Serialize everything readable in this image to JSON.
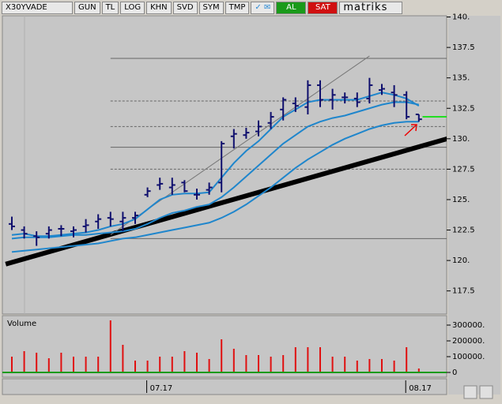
{
  "toolbar": {
    "symbol": "X30YVADE",
    "buttons": [
      "GUN",
      "TL",
      "LOG",
      "KHN",
      "SVD",
      "SYM",
      "TMP"
    ],
    "alarm": "AL",
    "sell": "SAT",
    "brand": "matriks"
  },
  "chart_data": {
    "type": "ohlc",
    "color": "#10106e",
    "categories": [
      null,
      null,
      null,
      null,
      null,
      null,
      null,
      null,
      null,
      null,
      null,
      "07.17",
      null,
      null,
      null,
      null,
      null,
      null,
      null,
      null,
      null,
      null,
      null,
      null,
      null,
      null,
      null,
      null,
      null,
      null,
      null,
      null,
      "08.17",
      null
    ],
    "ohlc": {
      "open": [
        123.0,
        122.5,
        122.0,
        122.2,
        122.6,
        122.4,
        122.8,
        123.2,
        123.5,
        123.2,
        123.5,
        125.4,
        126.2,
        126.0,
        126.4,
        125.4,
        125.8,
        126.4,
        130.2,
        130.3,
        130.6,
        131.3,
        132.4,
        132.9,
        132.6,
        134.4,
        133.2,
        133.4,
        133.3,
        133.3,
        134.0,
        133.8,
        133.6,
        132.0
      ],
      "high": [
        123.6,
        122.8,
        122.4,
        122.8,
        122.9,
        122.8,
        123.4,
        123.8,
        124.0,
        124.0,
        124.0,
        126.0,
        126.8,
        126.8,
        126.6,
        125.9,
        126.4,
        129.8,
        130.8,
        130.9,
        131.5,
        132.2,
        133.4,
        133.4,
        134.8,
        134.8,
        134.1,
        133.8,
        133.8,
        135.0,
        134.5,
        134.4,
        133.9,
        132.0
      ],
      "low": [
        122.5,
        121.8,
        121.2,
        121.8,
        122.0,
        121.9,
        122.3,
        122.6,
        122.8,
        122.4,
        123.0,
        125.2,
        125.8,
        125.4,
        125.6,
        125.0,
        125.4,
        125.6,
        129.2,
        130.0,
        130.2,
        130.8,
        131.5,
        132.2,
        132.0,
        132.6,
        132.4,
        132.9,
        132.6,
        132.9,
        133.6,
        132.6,
        131.6,
        131.4
      ],
      "close": [
        122.8,
        122.2,
        121.9,
        122.5,
        122.6,
        122.5,
        122.9,
        123.4,
        123.4,
        123.5,
        123.7,
        125.7,
        126.3,
        126.2,
        125.7,
        125.4,
        126.0,
        129.6,
        130.4,
        130.5,
        131.0,
        131.8,
        133.2,
        132.7,
        134.4,
        133.2,
        133.6,
        133.4,
        133.0,
        134.4,
        134.1,
        133.6,
        131.8,
        131.6
      ]
    },
    "moving_averages": [
      {
        "color": "#1f86cc",
        "values": [
          122.1,
          122.2,
          122.0,
          122.0,
          122.1,
          122.2,
          122.3,
          122.5,
          122.8,
          123.0,
          123.4,
          124.2,
          125.0,
          125.4,
          125.5,
          125.5,
          125.6,
          126.8,
          128.0,
          129.0,
          129.8,
          130.8,
          131.8,
          132.4,
          133.0,
          133.2,
          133.2,
          133.2,
          133.2,
          133.5,
          133.8,
          133.6,
          133.3,
          132.7
        ]
      },
      {
        "color": "#1f86cc",
        "values": [
          121.8,
          121.9,
          121.9,
          121.9,
          122.0,
          122.1,
          122.1,
          122.2,
          122.3,
          122.4,
          122.6,
          123.0,
          123.5,
          123.9,
          124.1,
          124.4,
          124.6,
          125.2,
          126.0,
          126.9,
          127.8,
          128.7,
          129.6,
          130.3,
          131.0,
          131.4,
          131.7,
          131.9,
          132.2,
          132.5,
          132.8,
          133.0,
          133.0,
          132.8
        ]
      },
      {
        "color": "#1f86cc",
        "values": [
          120.7,
          120.8,
          120.9,
          121.0,
          121.1,
          121.2,
          121.3,
          121.4,
          121.6,
          121.8,
          121.9,
          122.1,
          122.3,
          122.5,
          122.7,
          122.9,
          123.1,
          123.5,
          124.0,
          124.6,
          125.3,
          126.0,
          126.8,
          127.6,
          128.3,
          128.9,
          129.5,
          130.0,
          130.4,
          130.8,
          131.1,
          131.3,
          131.4,
          131.4
        ]
      }
    ],
    "trendlines": [
      {
        "color": "#000000",
        "x": [
          -0.5,
          35.3
        ],
        "y": [
          119.7,
          130.0
        ]
      },
      {
        "color": "#777777",
        "x": [
          8,
          29.0
        ],
        "y": [
          122.1,
          136.8
        ]
      }
    ],
    "levels": [
      {
        "value": 136.6,
        "x": [
          8,
          35.3
        ],
        "dash": false,
        "color": "#666666"
      },
      {
        "value": 133.1,
        "x": [
          8,
          35.3
        ],
        "dash": true,
        "color": "#666666"
      },
      {
        "value": 131.0,
        "x": [
          8,
          35.3
        ],
        "dash": true,
        "color": "#666666"
      },
      {
        "value": 129.3,
        "x": [
          8,
          35.3
        ],
        "dash": false,
        "color": "#666666"
      },
      {
        "value": 127.5,
        "x": [
          8,
          35.3
        ],
        "dash": true,
        "color": "#666666"
      },
      {
        "value": 121.8,
        "x": [
          8,
          35.3
        ],
        "dash": false,
        "color": "#666666"
      },
      {
        "value": 131.8,
        "x": [
          33.3,
          35.3
        ],
        "dash": false,
        "color": "#22dd22"
      }
    ],
    "ylim": [
      115.6,
      140.1
    ],
    "yticks": [
      {
        "value": 117.5,
        "label": "117.5"
      },
      {
        "value": 120,
        "label": "120."
      },
      {
        "value": 122.5,
        "label": "122.5"
      },
      {
        "value": 125,
        "label": "125."
      },
      {
        "value": 127.5,
        "label": "127.5"
      },
      {
        "value": 130,
        "label": "130."
      },
      {
        "value": 132.5,
        "label": "132.5"
      },
      {
        "value": 135,
        "label": "135."
      },
      {
        "value": 137.5,
        "label": "137.5"
      },
      {
        "value": 140,
        "label": "140."
      }
    ],
    "volume": {
      "title": "Volume",
      "color": "#e01010",
      "values": [
        100000,
        135000,
        125000,
        90000,
        125000,
        100000,
        100000,
        100000,
        330000,
        175000,
        75000,
        75000,
        100000,
        100000,
        135000,
        125000,
        85000,
        210000,
        150000,
        110000,
        110000,
        100000,
        110000,
        160000,
        160000,
        160000,
        100000,
        100000,
        75000,
        85000,
        85000,
        75000,
        160000,
        25000
      ],
      "ylim": [
        -15000,
        360000
      ],
      "yticks": [
        0,
        {
          "value": 100000,
          "label": "100000."
        },
        {
          "value": 200000,
          "label": "200000."
        },
        {
          "value": 300000,
          "label": "300000."
        }
      ]
    }
  }
}
